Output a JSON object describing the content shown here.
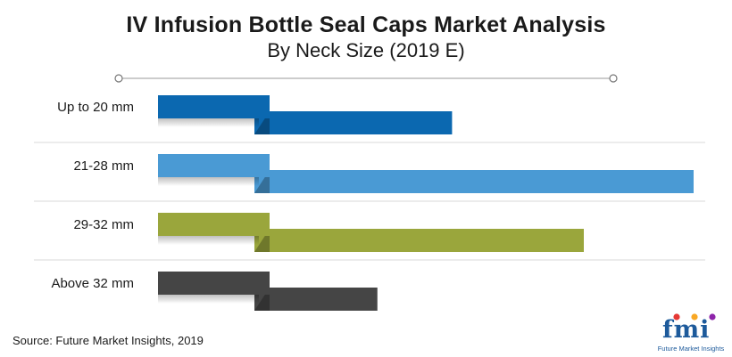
{
  "chart_data": {
    "type": "bar",
    "orientation": "horizontal",
    "title": "IV Infusion Bottle Seal Caps Market Analysis",
    "subtitle": "By Neck Size (2019 E)",
    "categories": [
      "Up to 20 mm",
      "21-28 mm",
      "29-32 mm",
      "Above 32 mm"
    ],
    "values": [
      45,
      100,
      75,
      28
    ],
    "colors": [
      "#0b68b0",
      "#4a9ad4",
      "#9aa63c",
      "#454545"
    ],
    "xlabel": "",
    "ylabel": "",
    "xlim": [
      0,
      100
    ]
  },
  "source": "Source: Future Market Insights, 2019",
  "logo": {
    "text": "fmi",
    "tagline": "Future Market Insights",
    "dot_colors": [
      "#e53935",
      "#f9a825",
      "#8e24aa"
    ]
  }
}
